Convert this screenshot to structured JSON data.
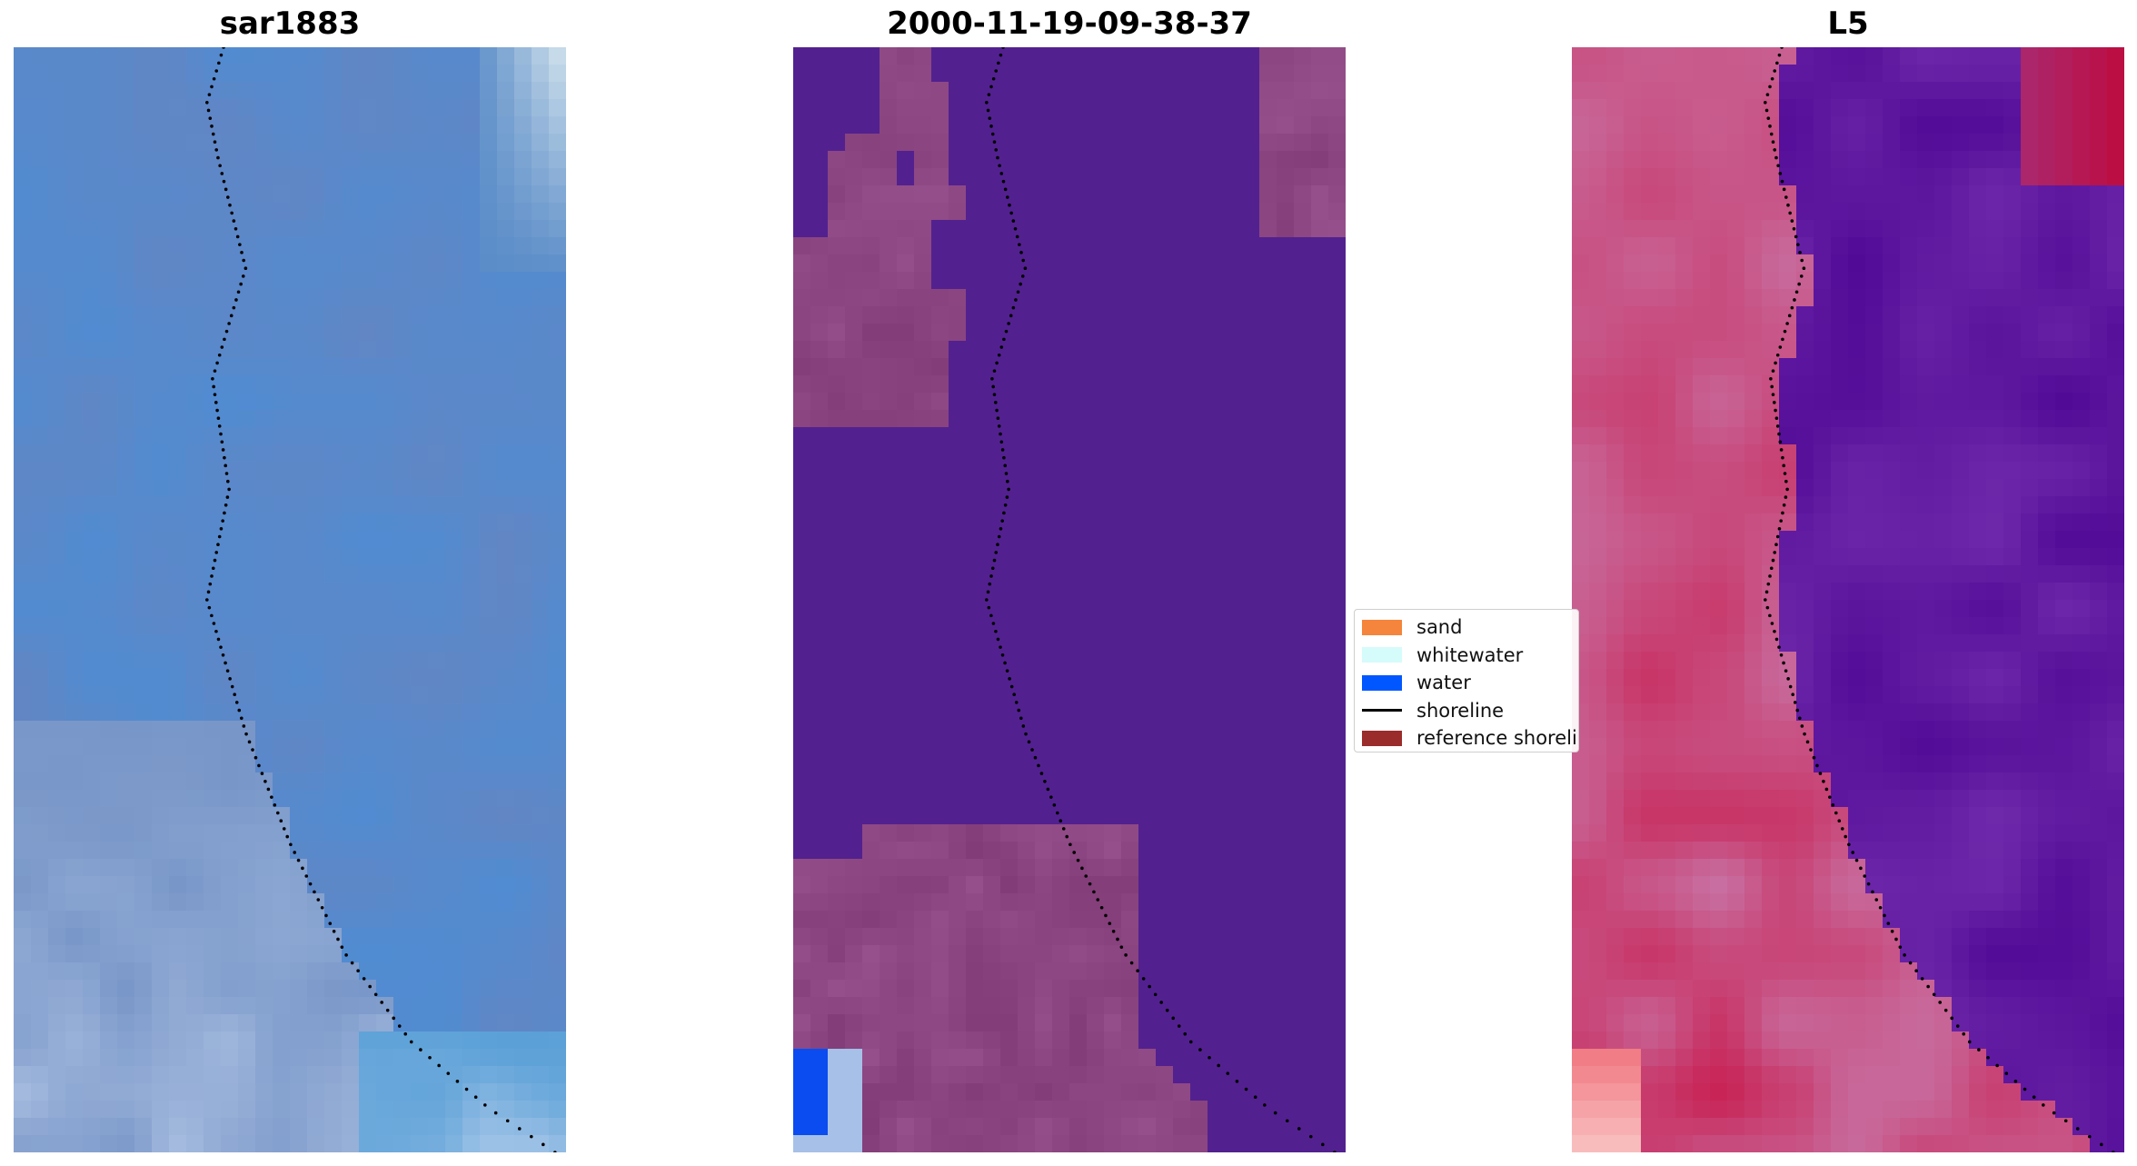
{
  "panels": [
    {
      "title": "sar1883",
      "colormap": "rgb-image"
    },
    {
      "title": "2000-11-19-09-38-37",
      "colormap": "classification"
    },
    {
      "title": "L5",
      "colormap": "index-image"
    }
  ],
  "legend": {
    "items": [
      {
        "label": "sand",
        "color": "#f5843c",
        "kind": "patch"
      },
      {
        "label": "whitewater",
        "color": "#d6fbfb",
        "kind": "patch"
      },
      {
        "label": "water",
        "color": "#0057ff",
        "kind": "patch"
      },
      {
        "label": "shoreline",
        "color": "#000000",
        "kind": "line"
      },
      {
        "label": "reference shoreli",
        "color": "#9b2c2c",
        "kind": "patch"
      }
    ]
  },
  "colors": {
    "sand_overlay": "#8a4080",
    "water_class": "#52218f",
    "water_blue": "#0a4cf0",
    "index_low": "#5b12a0",
    "index_high": "#c2114a"
  }
}
